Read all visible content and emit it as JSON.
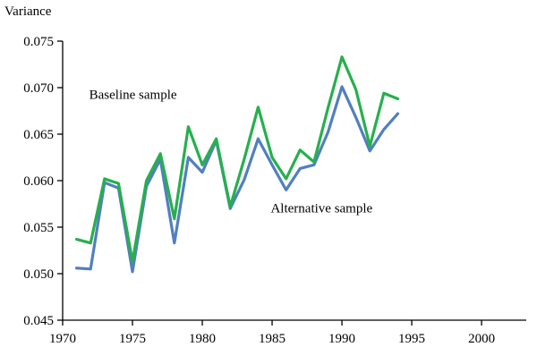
{
  "chart_data": {
    "type": "line",
    "title": "",
    "xlabel": "",
    "ylabel": "Variance",
    "grid": false,
    "legend_position": "inline-annotations",
    "xlim": [
      1970,
      2003.2
    ],
    "ylim": [
      0.045,
      0.075
    ],
    "xticks": [
      1970,
      1975,
      1980,
      1985,
      1990,
      1995,
      2000
    ],
    "xtick_labels": [
      "1970",
      "1975",
      "1980",
      "1985",
      "1990",
      "1995",
      "2000"
    ],
    "yticks": [
      0.045,
      0.05,
      0.055,
      0.06,
      0.065,
      0.07,
      0.075
    ],
    "ytick_labels": [
      "0.045",
      "0.050",
      "0.055",
      "0.060",
      "0.065",
      "0.070",
      "0.075"
    ],
    "x": [
      1971,
      1972,
      1973,
      1974,
      1975,
      1976,
      1977,
      1978,
      1979,
      1980,
      1981,
      1982,
      1983,
      1984,
      1985,
      1986,
      1987,
      1988,
      1989,
      1990,
      1991,
      1992,
      1993,
      1994
    ],
    "series": [
      {
        "name": "Baseline sample",
        "color": "#26b04c",
        "values": [
          0.0537,
          0.0533,
          0.0602,
          0.0597,
          0.0513,
          0.06,
          0.0629,
          0.0559,
          0.0658,
          0.0617,
          0.0645,
          0.0572,
          0.0623,
          0.0679,
          0.0625,
          0.0602,
          0.0633,
          0.062,
          0.0678,
          0.0733,
          0.0698,
          0.0637,
          0.0694,
          0.0688
        ]
      },
      {
        "name": "Alternative sample",
        "color": "#517fc1",
        "values": [
          0.0506,
          0.0505,
          0.0598,
          0.0592,
          0.0502,
          0.0594,
          0.0623,
          0.0533,
          0.0625,
          0.0609,
          0.0643,
          0.057,
          0.0601,
          0.0645,
          0.0617,
          0.059,
          0.0613,
          0.0617,
          0.0652,
          0.0701,
          0.0668,
          0.0632,
          0.0655,
          0.0672
        ]
      }
    ],
    "annotations": [
      {
        "text": "Baseline sample",
        "x": 1971.9,
        "y": 0.0688
      },
      {
        "text": "Alternative sample",
        "x": 1984.9,
        "y": 0.0566
      }
    ],
    "axis_color": "#000000"
  }
}
